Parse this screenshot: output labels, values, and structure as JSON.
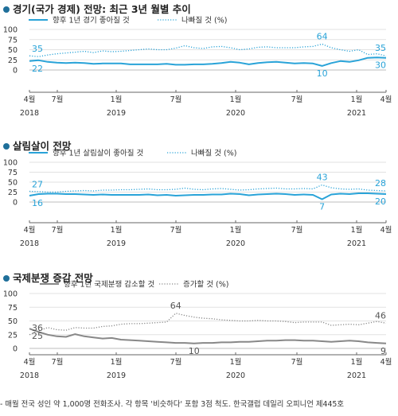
{
  "footnote": "- 매월 전국 성인 약 1,000명 전화조사. 각 항목 '비슷하다' 포함 3점 척도. 한국갤럽 데일리 오피니언 제445호",
  "chart_data": [
    {
      "type": "line",
      "title": "경기(국가 경제) 전망:  최근 3년 월별 추이",
      "ylim": [
        0,
        100
      ],
      "yticks": [
        "0",
        "25",
        "50",
        "75",
        "100"
      ],
      "x_ticks": [
        "4월",
        "7월",
        "1월",
        "7월",
        "1월",
        "7월",
        "1월",
        "4월"
      ],
      "year_labels": [
        "2018",
        "2019",
        "2020",
        "2021"
      ],
      "color_primary": "#29a3d8",
      "series": [
        {
          "name": "향후 1년 경기 좋아질 것",
          "style": "solid",
          "values": [
            22,
            24,
            20,
            18,
            17,
            18,
            17,
            15,
            16,
            16,
            16,
            14,
            14,
            14,
            14,
            15,
            13,
            13,
            14,
            14,
            15,
            17,
            20,
            18,
            14,
            17,
            19,
            20,
            18,
            16,
            17,
            16,
            10,
            17,
            22,
            20,
            24,
            30,
            31,
            30
          ]
        },
        {
          "name": "나빠질 것 (%)",
          "style": "dotted",
          "values": [
            35,
            33,
            37,
            40,
            42,
            44,
            46,
            43,
            47,
            45,
            46,
            48,
            50,
            52,
            50,
            50,
            54,
            60,
            55,
            53,
            57,
            58,
            55,
            50,
            52,
            56,
            57,
            55,
            55,
            55,
            57,
            58,
            64,
            55,
            50,
            46,
            50,
            38,
            40,
            35
          ]
        }
      ],
      "annotations": [
        "35",
        "22",
        "64",
        "10",
        "35",
        "30"
      ]
    },
    {
      "type": "line",
      "title": "살림살이 전망",
      "ylim": [
        0,
        100
      ],
      "yticks": [
        "0",
        "25",
        "50",
        "75",
        "100"
      ],
      "x_ticks": [
        "4월",
        "7월",
        "1월",
        "7월",
        "1월",
        "7월",
        "1월",
        "4월"
      ],
      "year_labels": [
        "2018",
        "2019",
        "2020",
        "2021"
      ],
      "color_primary": "#29a3d8",
      "series": [
        {
          "name": "향후 1년 살림살이 좋아질 것",
          "style": "solid",
          "values": [
            16,
            20,
            21,
            21,
            20,
            20,
            19,
            18,
            19,
            18,
            18,
            18,
            18,
            19,
            17,
            18,
            16,
            17,
            18,
            18,
            19,
            19,
            21,
            20,
            17,
            19,
            20,
            21,
            20,
            18,
            19,
            18,
            7,
            19,
            21,
            20,
            22,
            22,
            21,
            20
          ]
        },
        {
          "name": "나빠질 것 (%)",
          "style": "dotted",
          "values": [
            27,
            26,
            25,
            25,
            27,
            28,
            29,
            28,
            30,
            30,
            31,
            31,
            32,
            33,
            31,
            31,
            32,
            35,
            32,
            31,
            33,
            34,
            32,
            30,
            31,
            33,
            34,
            35,
            33,
            33,
            34,
            33,
            43,
            36,
            33,
            32,
            33,
            30,
            29,
            28
          ]
        }
      ],
      "annotations": [
        "27",
        "16",
        "43",
        "7",
        "28",
        "20"
      ]
    },
    {
      "type": "line",
      "title": "국제분쟁 증감 전망",
      "ylim": [
        0,
        100
      ],
      "yticks": [
        "0",
        "25",
        "50",
        "75",
        "100"
      ],
      "x_ticks": [
        "4월",
        "7월",
        "1월",
        "7월",
        "1월",
        "7월",
        "1월",
        "4월"
      ],
      "year_labels": [
        "2018",
        "2019",
        "2020",
        "2021"
      ],
      "color_primary": "#888888",
      "series": [
        {
          "name": "향후 1년 국제분쟁 감소할 것",
          "style": "solid",
          "values": [
            36,
            30,
            25,
            22,
            21,
            26,
            22,
            20,
            18,
            19,
            16,
            15,
            14,
            13,
            12,
            11,
            10,
            10,
            9,
            10,
            10,
            11,
            11,
            12,
            12,
            13,
            14,
            14,
            15,
            15,
            14,
            14,
            13,
            12,
            13,
            14,
            13,
            11,
            10,
            9
          ]
        },
        {
          "name": "증가할 것 (%)",
          "style": "dotted",
          "values": [
            25,
            32,
            38,
            34,
            33,
            38,
            37,
            37,
            40,
            41,
            44,
            45,
            45,
            46,
            47,
            48,
            64,
            60,
            57,
            55,
            54,
            52,
            51,
            50,
            50,
            51,
            50,
            50,
            49,
            47,
            48,
            48,
            48,
            42,
            43,
            44,
            43,
            46,
            49,
            46
          ]
        }
      ],
      "annotations": [
        "36",
        "25",
        "64",
        "10",
        "46",
        "9"
      ]
    }
  ]
}
